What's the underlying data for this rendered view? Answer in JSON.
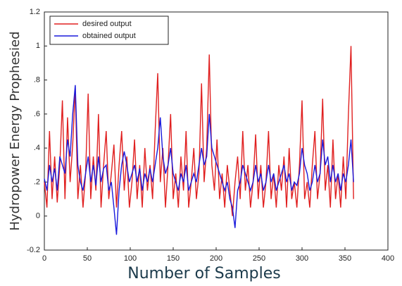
{
  "chart_data": {
    "type": "line",
    "x_label": "Number of Samples",
    "y_label": "Hydropower Energy Prophesied",
    "xlim": [
      0,
      400
    ],
    "xticks": [
      0,
      50,
      100,
      150,
      200,
      250,
      300,
      350,
      400
    ],
    "ylim": [
      -0.2,
      1.2
    ],
    "yticks": [
      -0.2,
      0,
      {
        "value": 0.2,
        "label": ".2"
      },
      {
        "value": 0.4,
        "label": ".4"
      },
      {
        "value": 0.6,
        "label": ".6"
      },
      {
        "value": 0.8,
        "label": ".8"
      },
      1,
      1.2
    ],
    "legend": "top-left",
    "x": [
      0,
      3,
      6,
      9,
      12,
      15,
      18,
      21,
      24,
      27,
      30,
      33,
      36,
      39,
      42,
      45,
      48,
      51,
      54,
      57,
      60,
      63,
      66,
      69,
      72,
      75,
      78,
      81,
      84,
      87,
      90,
      93,
      96,
      99,
      102,
      105,
      108,
      111,
      114,
      117,
      120,
      123,
      126,
      129,
      132,
      135,
      138,
      141,
      144,
      147,
      150,
      153,
      156,
      159,
      162,
      165,
      168,
      171,
      174,
      177,
      180,
      183,
      186,
      189,
      192,
      195,
      198,
      201,
      204,
      207,
      210,
      213,
      216,
      219,
      222,
      225,
      228,
      231,
      234,
      237,
      240,
      243,
      246,
      249,
      252,
      255,
      258,
      261,
      264,
      267,
      270,
      273,
      276,
      279,
      282,
      285,
      288,
      291,
      294,
      297,
      300,
      303,
      306,
      309,
      312,
      315,
      318,
      321,
      324,
      327,
      330,
      333,
      336,
      339,
      342,
      345,
      348,
      351,
      354,
      357,
      360
    ],
    "series": [
      {
        "name": "desired output",
        "color": "#e02020",
        "values": [
          0.2,
          0.05,
          0.5,
          0.1,
          0.35,
          0.08,
          0.3,
          0.68,
          0.1,
          0.58,
          0.2,
          0.42,
          0.75,
          0.1,
          0.3,
          0.05,
          0.25,
          0.72,
          0.1,
          0.35,
          0.15,
          0.6,
          0.05,
          0.3,
          0.5,
          0.1,
          0.25,
          0.42,
          0.05,
          0.3,
          0.5,
          0.15,
          0.35,
          0.05,
          0.2,
          0.45,
          0.1,
          0.3,
          0.05,
          0.4,
          0.15,
          0.3,
          0.1,
          0.5,
          0.84,
          0.2,
          0.4,
          0.05,
          0.3,
          0.6,
          0.1,
          0.25,
          0.05,
          0.35,
          0.15,
          0.5,
          0.05,
          0.2,
          0.4,
          0.1,
          0.25,
          0.78,
          0.2,
          0.4,
          0.95,
          0.3,
          0.15,
          0.45,
          0.1,
          0.25,
          0.05,
          0.3,
          0.15,
          0.0,
          0.2,
          0.35,
          0.1,
          0.5,
          0.15,
          0.3,
          0.05,
          0.2,
          0.48,
          0.1,
          0.3,
          0.05,
          0.2,
          0.5,
          0.1,
          0.25,
          0.05,
          0.3,
          0.15,
          0.35,
          0.05,
          0.4,
          0.1,
          0.2,
          0.05,
          0.3,
          0.68,
          0.1,
          0.2,
          0.05,
          0.3,
          0.5,
          0.1,
          0.25,
          0.69,
          0.15,
          0.3,
          0.05,
          0.45,
          0.1,
          0.25,
          0.05,
          0.35,
          0.1,
          0.6,
          1.0,
          0.1
        ]
      },
      {
        "name": "obtained output",
        "color": "#1a1adc",
        "values": [
          0.22,
          0.15,
          0.3,
          0.2,
          0.28,
          0.15,
          0.35,
          0.3,
          0.25,
          0.45,
          0.35,
          0.6,
          0.77,
          0.3,
          0.2,
          0.15,
          0.25,
          0.35,
          0.2,
          0.3,
          0.18,
          0.35,
          0.2,
          0.28,
          0.3,
          0.15,
          0.2,
          0.05,
          -0.11,
          0.15,
          0.3,
          0.38,
          0.3,
          0.2,
          0.25,
          0.3,
          0.2,
          0.28,
          0.15,
          0.25,
          0.2,
          0.28,
          0.2,
          0.3,
          0.4,
          0.58,
          0.35,
          0.25,
          0.3,
          0.4,
          0.25,
          0.2,
          0.15,
          0.25,
          0.2,
          0.3,
          0.15,
          0.2,
          0.25,
          0.2,
          0.3,
          0.4,
          0.3,
          0.35,
          0.6,
          0.4,
          0.35,
          0.3,
          0.25,
          0.2,
          0.15,
          0.2,
          0.1,
          0.05,
          -0.07,
          0.15,
          0.2,
          0.3,
          0.25,
          0.2,
          0.15,
          0.2,
          0.3,
          0.2,
          0.25,
          0.15,
          0.2,
          0.3,
          0.2,
          0.25,
          0.15,
          0.2,
          0.25,
          0.3,
          0.2,
          0.25,
          0.15,
          0.2,
          0.18,
          0.25,
          0.4,
          0.3,
          0.25,
          0.15,
          0.2,
          0.3,
          0.2,
          0.25,
          0.45,
          0.3,
          0.35,
          0.2,
          0.3,
          0.2,
          0.25,
          0.15,
          0.25,
          0.2,
          0.3,
          0.45,
          0.2
        ]
      }
    ]
  }
}
